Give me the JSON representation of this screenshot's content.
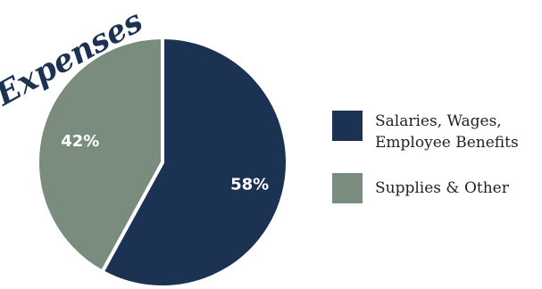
{
  "chart_data": {
    "type": "pie",
    "title": "Expenses",
    "slices": [
      {
        "label": "Salaries, Wages,\nEmployee Benefits",
        "value": 58,
        "display": "58%",
        "color": "#1c3253"
      },
      {
        "label": "Supplies & Other",
        "value": 42,
        "display": "42%",
        "color": "#7a8c7d"
      }
    ],
    "start_angle_deg": 0,
    "direction": "clockwise",
    "legend_position": "right"
  },
  "colors": {
    "title": "#1c3253",
    "label_text": "#ffffff",
    "separator": "#ffffff"
  }
}
